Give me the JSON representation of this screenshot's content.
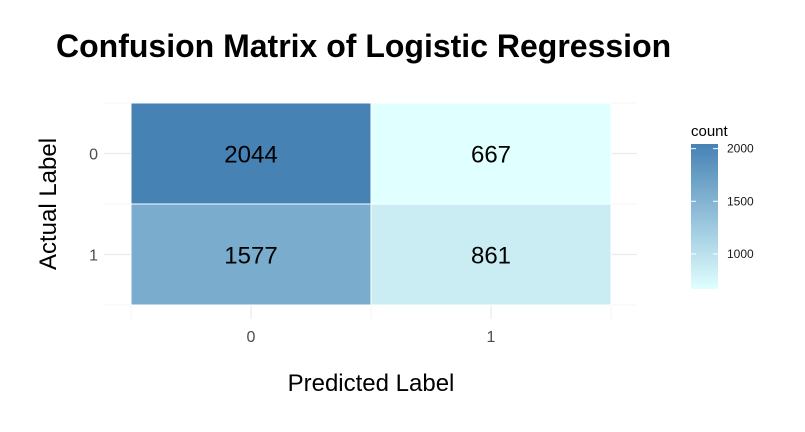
{
  "chart_data": {
    "type": "heatmap",
    "title": "Confusion Matrix of Logistic Regression",
    "xlabel": "Predicted Label",
    "ylabel": "Actual Label",
    "x_categories": [
      "0",
      "1"
    ],
    "y_categories": [
      "0",
      "1"
    ],
    "cells": [
      {
        "actual": "0",
        "predicted": "0",
        "count": 2044
      },
      {
        "actual": "0",
        "predicted": "1",
        "count": 667
      },
      {
        "actual": "1",
        "predicted": "0",
        "count": 1577
      },
      {
        "actual": "1",
        "predicted": "1",
        "count": 861
      }
    ],
    "legend": {
      "title": "count",
      "ticks": [
        1000,
        1500,
        2000
      ],
      "range": [
        667,
        2044
      ],
      "low_color": "#e0ffff",
      "high_color": "#4682b4",
      "placement": "right"
    },
    "grid": true
  }
}
